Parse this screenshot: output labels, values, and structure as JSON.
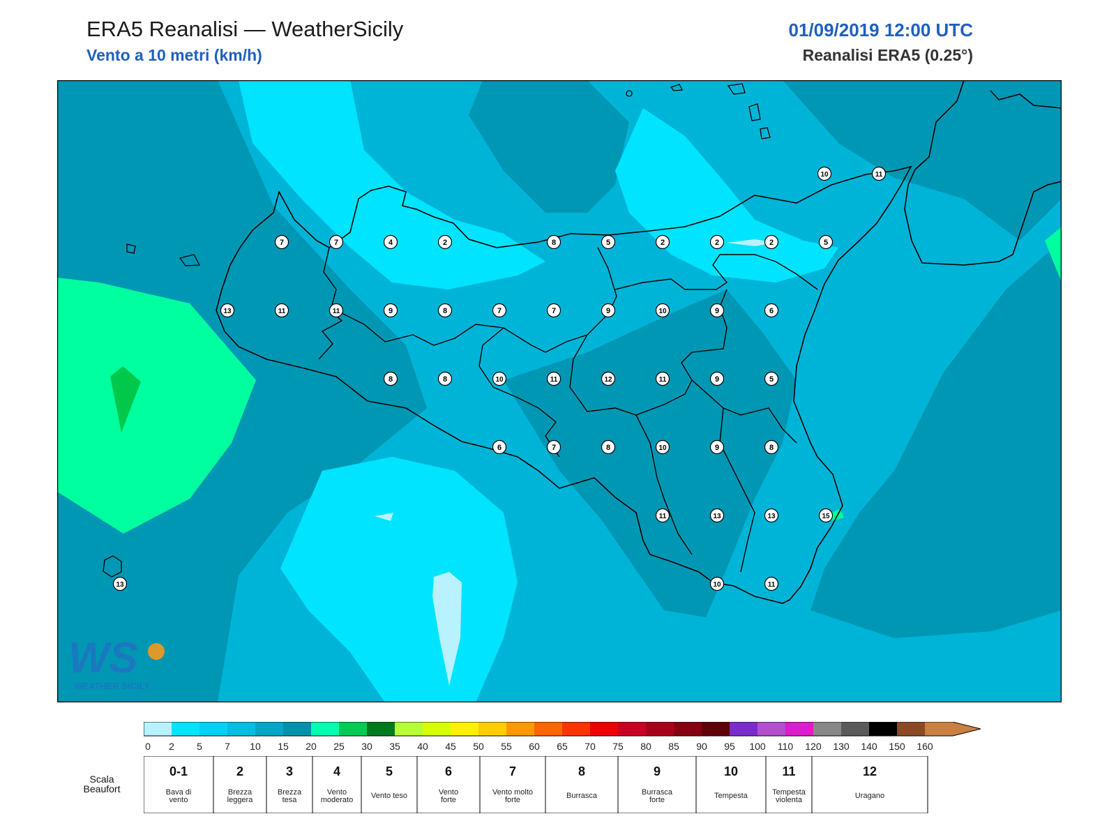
{
  "header": {
    "title": "ERA5 Reanalisi — WeatherSicily",
    "subtitle": "Vento a 10 metri (km/h)",
    "datetime": "01/09/2019 12:00 UTC",
    "model": "Reanalisi ERA5 (0.25°)"
  },
  "colors": {
    "level_0": "#b8f2ff",
    "level_2": "#00e4ff",
    "level_5": "#00ccee",
    "level_7": "#00b4d8",
    "level_10": "#0097b4",
    "level_15": "#00ff9e",
    "level_20": "#00c84a",
    "border": "#000000"
  },
  "station_values": [
    {
      "id": "nw-1",
      "value": "7"
    },
    {
      "id": "nw-2",
      "value": "7"
    },
    {
      "id": "n-1",
      "value": "4"
    },
    {
      "id": "n-2",
      "value": "2"
    },
    {
      "id": "n-3",
      "value": "8"
    },
    {
      "id": "n-4",
      "value": "5"
    },
    {
      "id": "n-5",
      "value": "2"
    },
    {
      "id": "n-6",
      "value": "2"
    },
    {
      "id": "n-7",
      "value": "2"
    },
    {
      "id": "n-8",
      "value": "5"
    },
    {
      "id": "ne-1",
      "value": "10"
    },
    {
      "id": "ne-2",
      "value": "11"
    },
    {
      "id": "w-1",
      "value": "13"
    },
    {
      "id": "w-2",
      "value": "11"
    },
    {
      "id": "w-3",
      "value": "11"
    },
    {
      "id": "c-1",
      "value": "9"
    },
    {
      "id": "c-2",
      "value": "8"
    },
    {
      "id": "c-3",
      "value": "7"
    },
    {
      "id": "c-4",
      "value": "7"
    },
    {
      "id": "c-5",
      "value": "9"
    },
    {
      "id": "c-6",
      "value": "10"
    },
    {
      "id": "c-7",
      "value": "9"
    },
    {
      "id": "c-8",
      "value": "6"
    },
    {
      "id": "m-1",
      "value": "8"
    },
    {
      "id": "m-2",
      "value": "8"
    },
    {
      "id": "m-3",
      "value": "10"
    },
    {
      "id": "m-4",
      "value": "11"
    },
    {
      "id": "m-5",
      "value": "12"
    },
    {
      "id": "m-6",
      "value": "11"
    },
    {
      "id": "m-7",
      "value": "9"
    },
    {
      "id": "m-8",
      "value": "5"
    },
    {
      "id": "s-1",
      "value": "6"
    },
    {
      "id": "s-2",
      "value": "7"
    },
    {
      "id": "s-3",
      "value": "8"
    },
    {
      "id": "s-4",
      "value": "10"
    },
    {
      "id": "s-5",
      "value": "9"
    },
    {
      "id": "s-6",
      "value": "8"
    },
    {
      "id": "se-1",
      "value": "11"
    },
    {
      "id": "se-2",
      "value": "13"
    },
    {
      "id": "se-3",
      "value": "13"
    },
    {
      "id": "se-4",
      "value": "15"
    },
    {
      "id": "se-5",
      "value": "10"
    },
    {
      "id": "se-6",
      "value": "11"
    },
    {
      "id": "pantelleria",
      "value": "13"
    }
  ],
  "colorbar": {
    "colors": [
      "#b8f2ff",
      "#00e4ff",
      "#00d2f5",
      "#00bfe0",
      "#00a7c7",
      "#0092ad",
      "#00ffb0",
      "#00cc55",
      "#007a1e",
      "#b5ff33",
      "#d8ff00",
      "#fff000",
      "#ffcc00",
      "#ff9900",
      "#ff6600",
      "#ff3300",
      "#ee0000",
      "#cc0022",
      "#a80018",
      "#850010",
      "#5e0008",
      "#7b2dcc",
      "#b44ecc",
      "#dd1ccc",
      "#888888",
      "#5a5a5a",
      "#000000",
      "#8a4a26",
      "#c98040"
    ],
    "ticks": [
      "0",
      "2",
      "5",
      "7",
      "10",
      "15",
      "20",
      "25",
      "30",
      "35",
      "40",
      "45",
      "50",
      "55",
      "60",
      "65",
      "70",
      "75",
      "80",
      "85",
      "90",
      "95",
      "100",
      "110",
      "120",
      "130",
      "140",
      "150",
      "160"
    ]
  },
  "beaufort": {
    "title_line1": "Scala",
    "title_line2": "Beaufort",
    "classes": [
      {
        "number": "0-1",
        "desc1": "Bava di",
        "desc2": "vento"
      },
      {
        "number": "2",
        "desc1": "Brezza",
        "desc2": "leggera"
      },
      {
        "number": "3",
        "desc1": "Brezza",
        "desc2": "tesa"
      },
      {
        "number": "4",
        "desc1": "Vento",
        "desc2": "moderato"
      },
      {
        "number": "5",
        "desc1": "Vento teso",
        "desc2": ""
      },
      {
        "number": "6",
        "desc1": "Vento",
        "desc2": "forte"
      },
      {
        "number": "7",
        "desc1": "Vento molto",
        "desc2": "forte"
      },
      {
        "number": "8",
        "desc1": "Burrasca",
        "desc2": ""
      },
      {
        "number": "9",
        "desc1": "Burrasca",
        "desc2": "forte"
      },
      {
        "number": "10",
        "desc1": "Tempesta",
        "desc2": ""
      },
      {
        "number": "11",
        "desc1": "Tempesta",
        "desc2": "violenta"
      },
      {
        "number": "12",
        "desc1": "Uragano",
        "desc2": ""
      }
    ]
  },
  "logo": {
    "mark": "WS",
    "text": "WEATHER SICILY"
  }
}
